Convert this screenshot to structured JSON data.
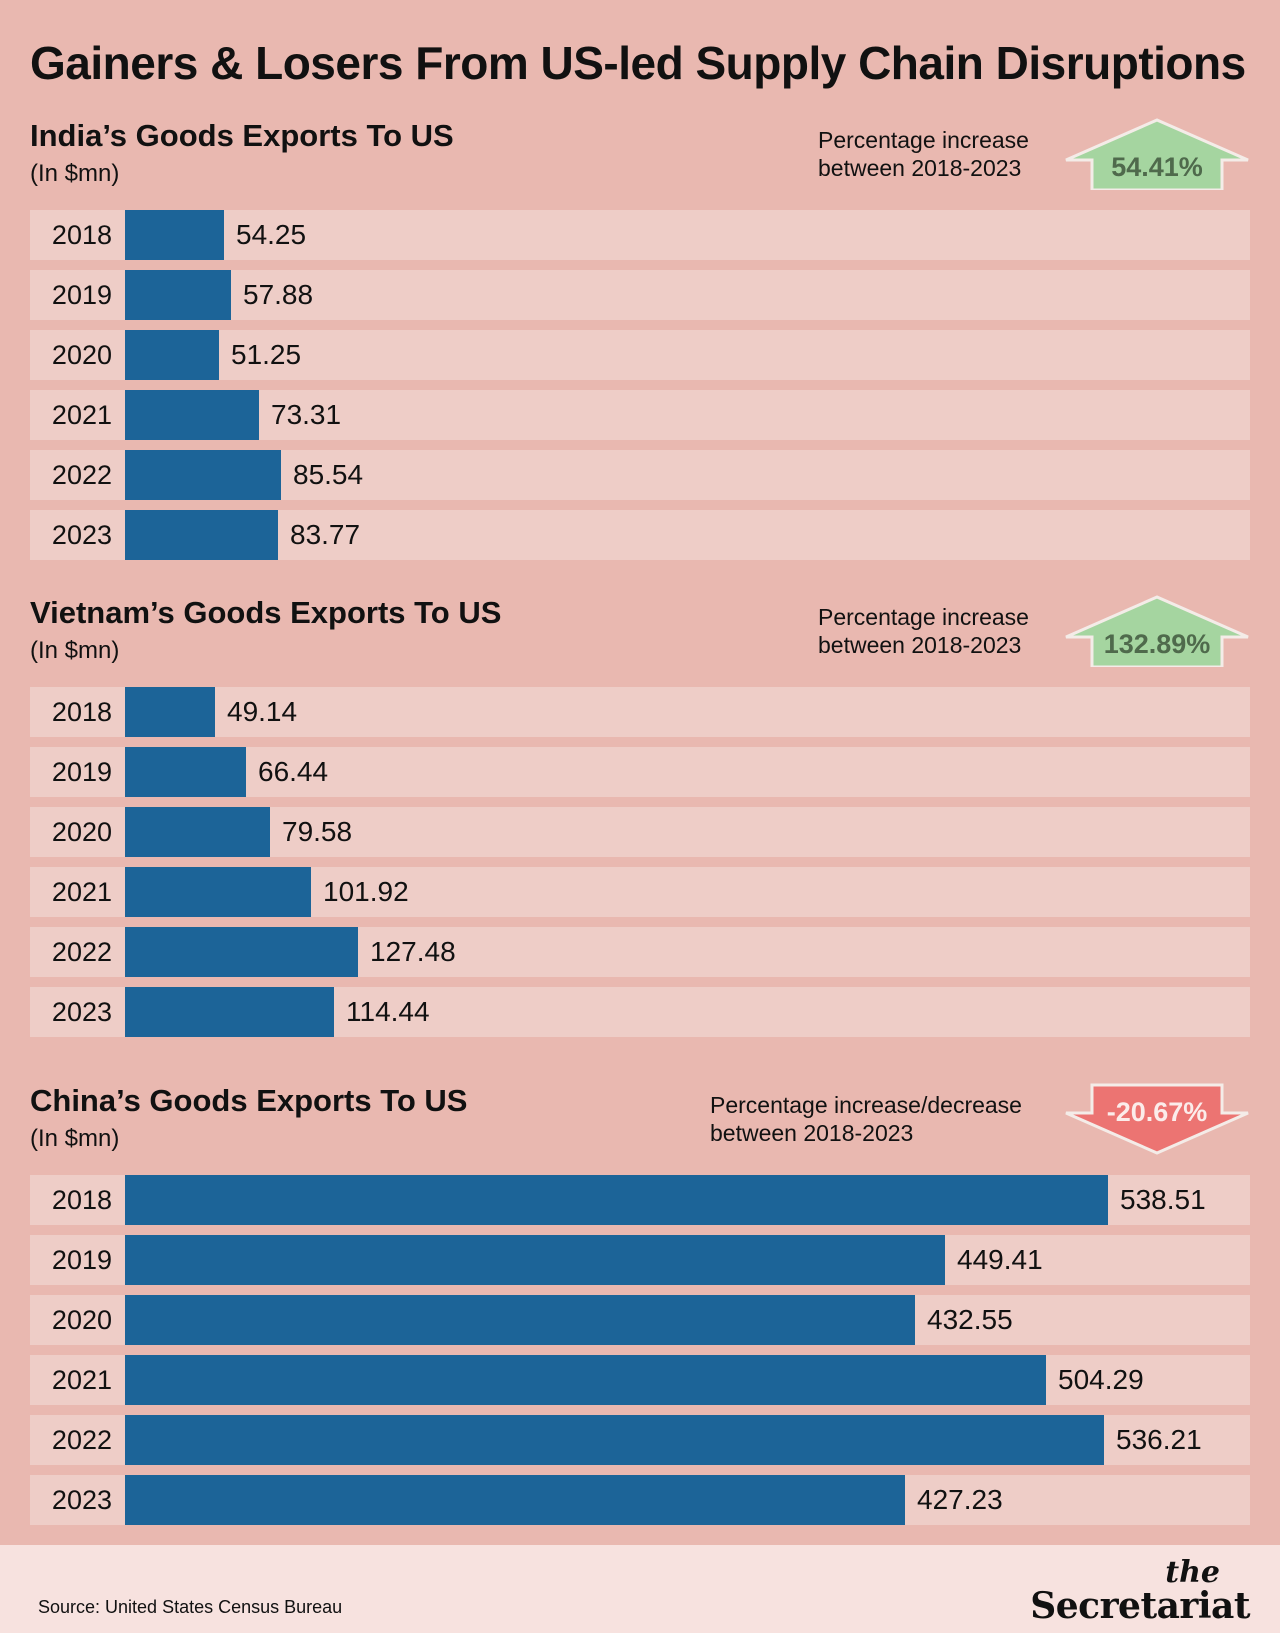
{
  "title": "Gainers & Losers From US-led Supply Chain Disruptions",
  "colors": {
    "background": "#e9b8b0",
    "bar": "#1c6498",
    "row": "#eecdc7",
    "up_badge": "#a5d5a0",
    "down_badge": "#ec7472"
  },
  "source": "Source: United States Census Bureau",
  "logo": {
    "the": "the",
    "name": "Secretariat"
  },
  "chart_data": [
    {
      "type": "bar",
      "title": "India’s Goods Exports To US",
      "subtitle": "(In $mn)",
      "categories": [
        "2018",
        "2019",
        "2020",
        "2021",
        "2022",
        "2023"
      ],
      "values": [
        54.25,
        57.88,
        51.25,
        73.31,
        85.54,
        83.77
      ],
      "value_labels": [
        "54.25",
        "57.88",
        "51.25",
        "73.31",
        "85.54",
        "83.77"
      ],
      "xlim": [
        0,
        545
      ],
      "change_label": "Percentage increase\nbetween 2018-2023",
      "change_value": "54.41%",
      "direction": "up"
    },
    {
      "type": "bar",
      "title": "Vietnam’s Goods Exports To US",
      "subtitle": "(In $mn)",
      "categories": [
        "2018",
        "2019",
        "2020",
        "2021",
        "2022",
        "2023"
      ],
      "values": [
        49.14,
        66.44,
        79.58,
        101.92,
        127.48,
        114.44
      ],
      "value_labels": [
        "49.14",
        "66.44",
        "79.58",
        "101.92",
        "127.48",
        "114.44"
      ],
      "xlim": [
        0,
        545
      ],
      "change_label": "Percentage increase\nbetween 2018-2023",
      "change_value": "132.89%",
      "direction": "up"
    },
    {
      "type": "bar",
      "title": "China’s Goods Exports To US",
      "subtitle": "(In $mn)",
      "categories": [
        "2018",
        "2019",
        "2020",
        "2021",
        "2022",
        "2023"
      ],
      "values": [
        538.51,
        449.41,
        432.55,
        504.29,
        536.21,
        427.23
      ],
      "value_labels": [
        "538.51",
        "449.41",
        "432.55",
        "504.29",
        "536.21",
        "427.23"
      ],
      "xlim": [
        0,
        545
      ],
      "change_label": "Percentage increase/decrease\nbetween 2018-2023",
      "change_value": "-20.67%",
      "direction": "down"
    }
  ]
}
